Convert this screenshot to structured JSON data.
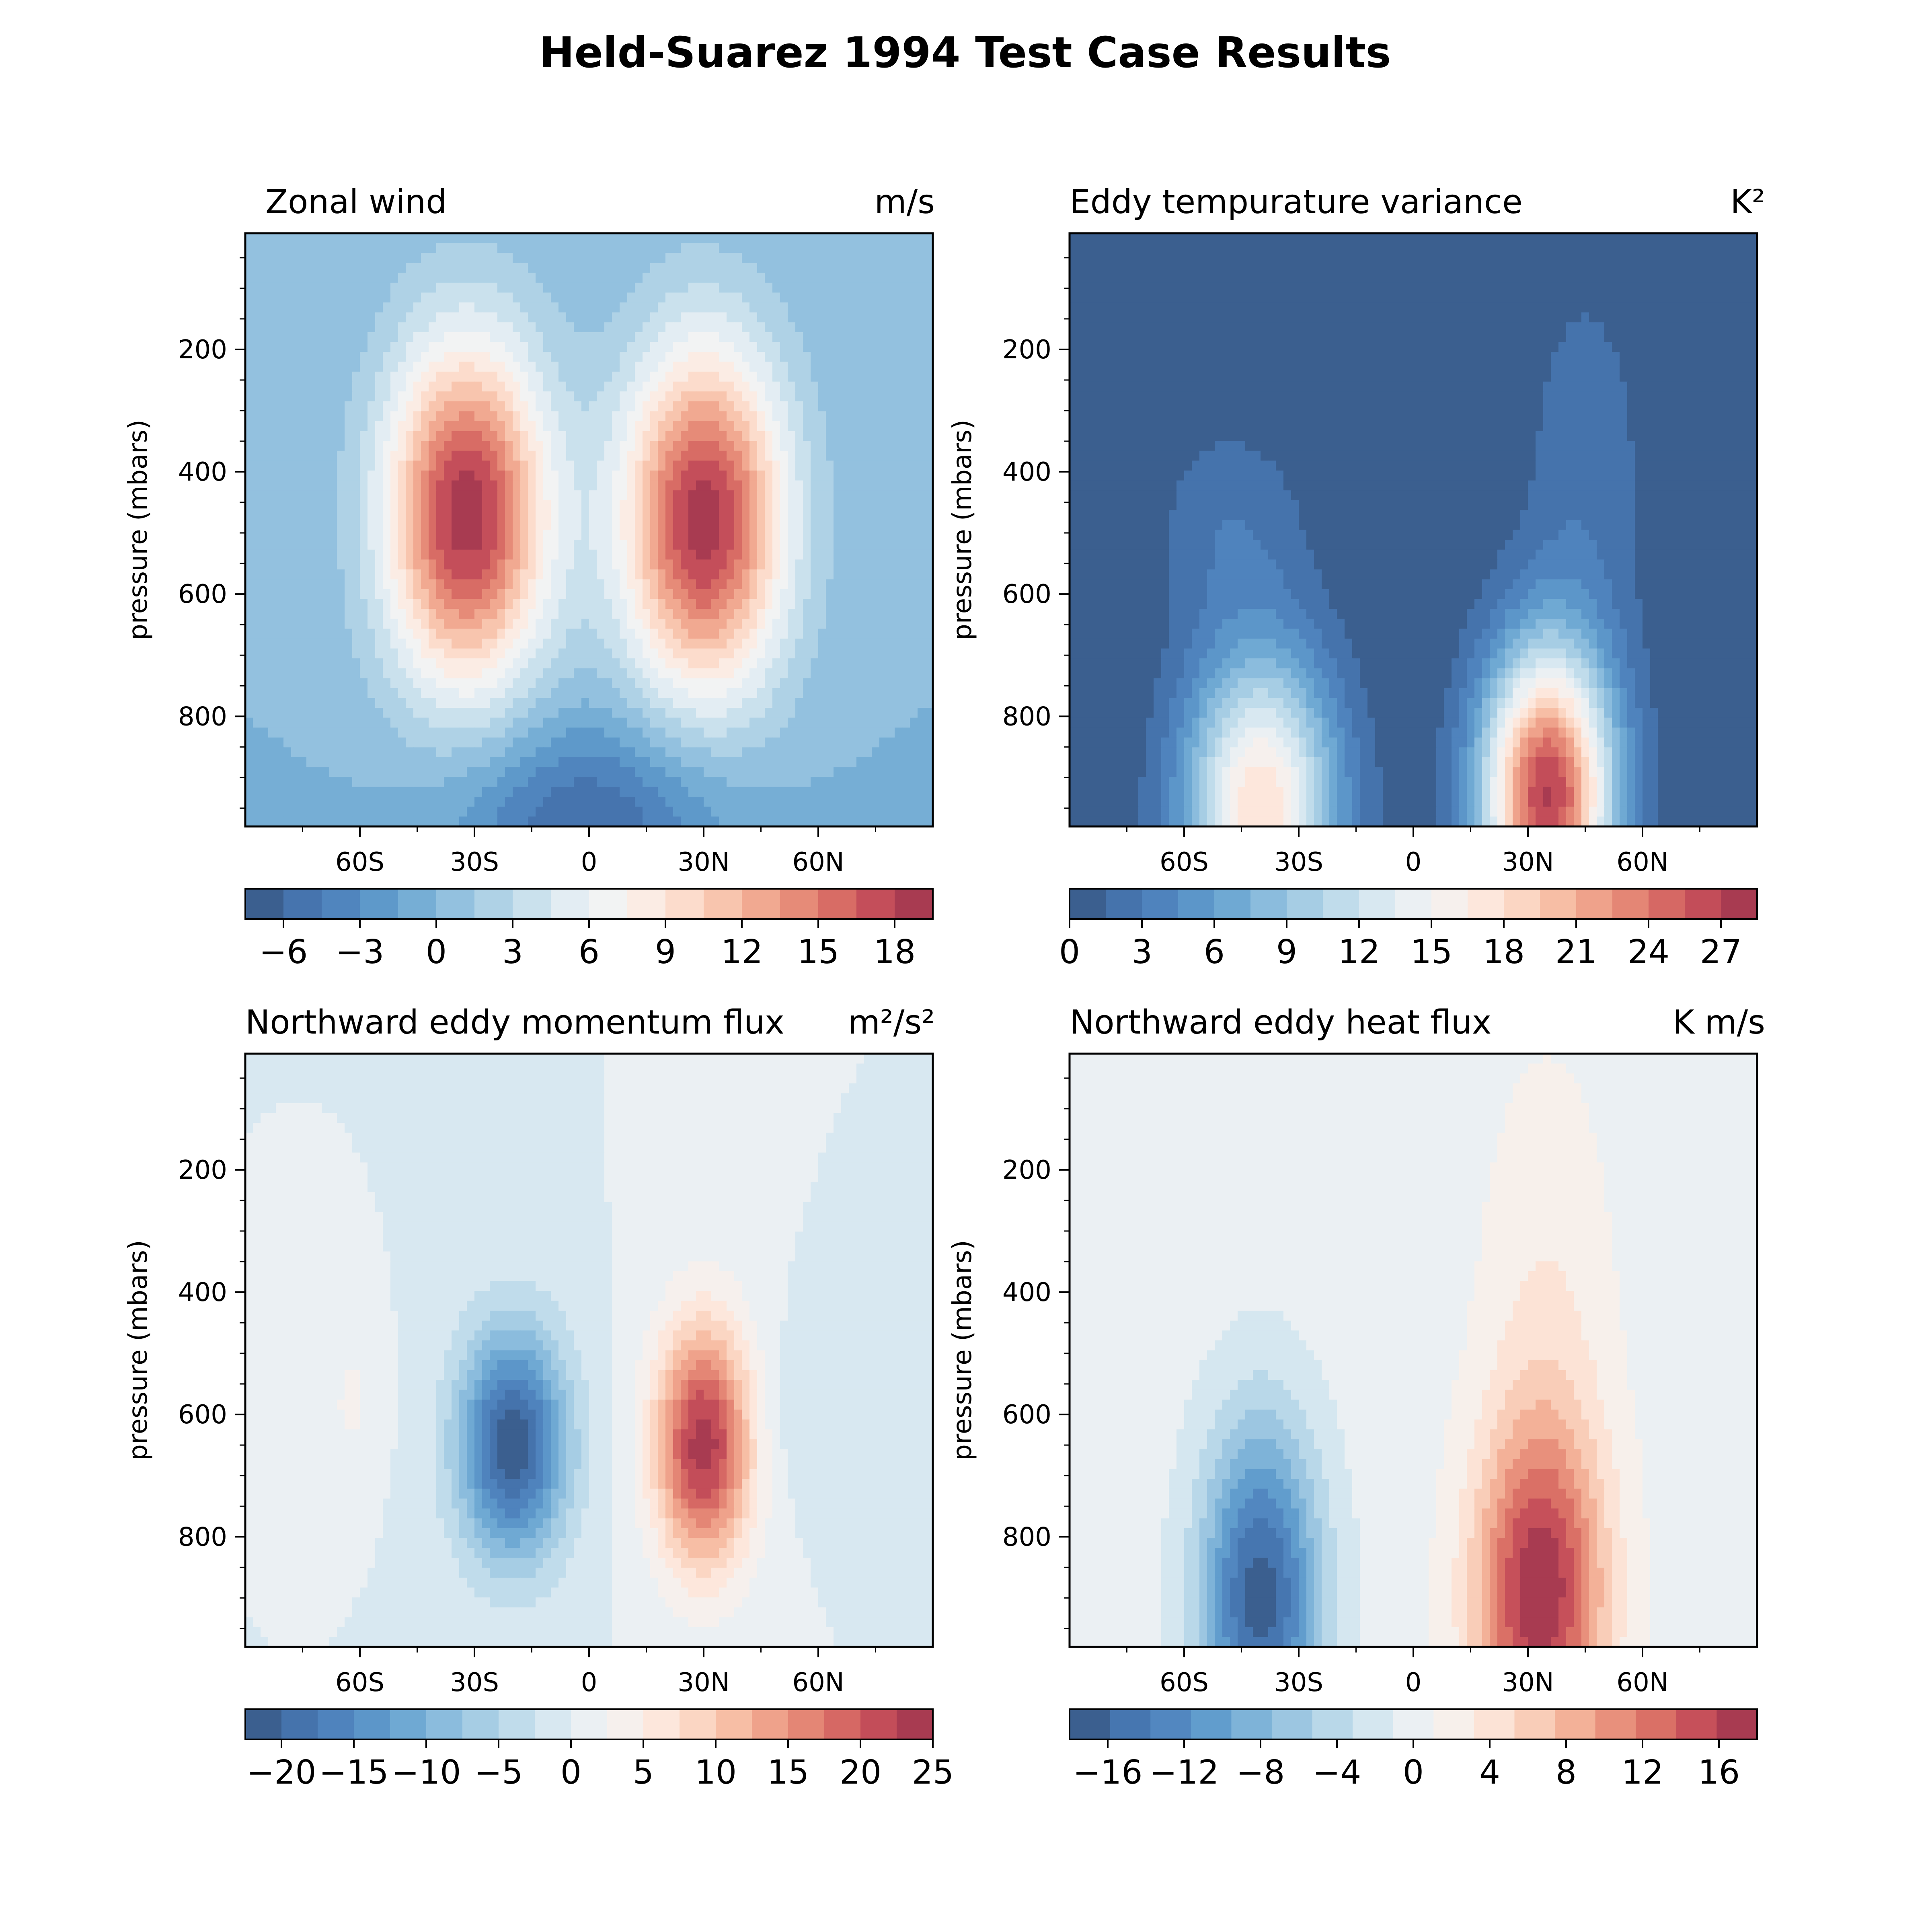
{
  "figure": {
    "title": "Held-Suarez 1994 Test Case Results"
  },
  "colors": {
    "RdBu_r_16": [
      "#3b5f8f",
      "#4777b2",
      "#5389c2",
      "#64a2cf",
      "#86b8db",
      "#a6cde4",
      "#c5dfec",
      "#e2edf3",
      "#f3f3f3",
      "#fdebe1",
      "#fbd6c3",
      "#f6b99f",
      "#eb9781",
      "#dd7468",
      "#c8515b",
      "#a83b51"
    ]
  },
  "chart_data": [
    {
      "type": "contourf",
      "title": "Zonal wind",
      "units": "m/s",
      "xlabel": "",
      "ylabel": "pressure (mbars)",
      "x_tick_labels": [
        "60S",
        "30S",
        "0",
        "30N",
        "60N"
      ],
      "x_tick_values": [
        -60,
        -30,
        0,
        30,
        60
      ],
      "xlim": [
        -90,
        90
      ],
      "y_tick_labels": [
        "200",
        "400",
        "600",
        "800"
      ],
      "y_tick_values": [
        200,
        400,
        600,
        800
      ],
      "ylim": [
        980,
        10
      ],
      "y_inverted": true,
      "colorbar": {
        "tick_labels": [
          "−6",
          "−3",
          "0",
          "3",
          "6",
          "9",
          "12",
          "15",
          "18"
        ],
        "tick_values": [
          -6,
          -3,
          0,
          3,
          6,
          9,
          12,
          15,
          18
        ],
        "range": [
          -7.5,
          19.5
        ],
        "levels": 18
      },
      "features": [
        {
          "kind": "max",
          "x": -32,
          "p": 470,
          "value": 19,
          "sx": 15,
          "sp": 200
        },
        {
          "kind": "max",
          "x": 30,
          "p": 480,
          "value": 19,
          "sx": 15,
          "sp": 200
        },
        {
          "kind": "min",
          "x": 0,
          "p": 980,
          "value": -6,
          "sx": 25,
          "sp": 120
        }
      ]
    },
    {
      "type": "contourf",
      "title": "Eddy tempurature variance",
      "units": "K²",
      "xlabel": "",
      "ylabel": "pressure (mbars)",
      "x_tick_labels": [
        "60S",
        "30S",
        "0",
        "30N",
        "60N"
      ],
      "x_tick_values": [
        -60,
        -30,
        0,
        30,
        60
      ],
      "xlim": [
        -90,
        90
      ],
      "y_tick_labels": [
        "200",
        "400",
        "600",
        "800"
      ],
      "y_tick_values": [
        200,
        400,
        600,
        800
      ],
      "ylim": [
        980,
        10
      ],
      "y_inverted": true,
      "colorbar": {
        "tick_labels": [
          "0",
          "3",
          "6",
          "9",
          "12",
          "15",
          "18",
          "21",
          "24",
          "27"
        ],
        "tick_values": [
          0,
          3,
          6,
          9,
          12,
          15,
          18,
          21,
          24,
          27
        ],
        "range": [
          0,
          28.5
        ],
        "levels": 19
      },
      "features": [
        {
          "kind": "max",
          "x": -40,
          "p": 950,
          "value": 18,
          "sx": 14,
          "sp": 180
        },
        {
          "kind": "max",
          "x": 35,
          "p": 930,
          "value": 27,
          "sx": 12,
          "sp": 170
        },
        {
          "kind": "upper",
          "x": 45,
          "p": 400,
          "value": 2.5,
          "sx": 12,
          "sp": 250
        },
        {
          "kind": "upper",
          "x": -48,
          "p": 480,
          "value": 2.5,
          "sx": 14,
          "sp": 120
        }
      ]
    },
    {
      "type": "contourf",
      "title": "Northward eddy momentum flux",
      "units": "m²/s²",
      "xlabel": "",
      "ylabel": "pressure (mbars)",
      "x_tick_labels": [
        "60S",
        "30S",
        "0",
        "30N",
        "60N"
      ],
      "x_tick_values": [
        -60,
        -30,
        0,
        30,
        60
      ],
      "xlim": [
        -90,
        90
      ],
      "y_tick_labels": [
        "200",
        "400",
        "600",
        "800"
      ],
      "y_tick_values": [
        200,
        400,
        600,
        800
      ],
      "ylim": [
        980,
        10
      ],
      "y_inverted": true,
      "colorbar": {
        "tick_labels": [
          "−20",
          "−15",
          "−10",
          "−5",
          "0",
          "5",
          "10",
          "15",
          "20",
          "25"
        ],
        "tick_values": [
          -20,
          -15,
          -10,
          -5,
          0,
          5,
          10,
          15,
          20,
          25
        ],
        "range": [
          -22.5,
          25
        ],
        "levels": 19
      },
      "features": [
        {
          "kind": "min",
          "x": -20,
          "p": 650,
          "value": -22,
          "sx": 10,
          "sp": 130
        },
        {
          "kind": "max",
          "x": 30,
          "p": 650,
          "value": 24,
          "sx": 9,
          "sp": 140
        },
        {
          "kind": "max",
          "x": -62,
          "p": 580,
          "value": 3,
          "sx": 5,
          "sp": 80
        },
        {
          "kind": "min",
          "x": 55,
          "p": 600,
          "value": -2,
          "sx": 10,
          "sp": 100
        }
      ]
    },
    {
      "type": "contourf",
      "title": "Northward eddy heat flux",
      "units": "K m/s",
      "xlabel": "",
      "ylabel": "pressure (mbars)",
      "x_tick_labels": [
        "60S",
        "30S",
        "0",
        "30N",
        "60N"
      ],
      "x_tick_values": [
        -60,
        -30,
        0,
        30,
        60
      ],
      "xlim": [
        -90,
        90
      ],
      "y_tick_labels": [
        "200",
        "400",
        "600",
        "800"
      ],
      "y_tick_values": [
        200,
        400,
        600,
        800
      ],
      "ylim": [
        980,
        10
      ],
      "y_inverted": true,
      "colorbar": {
        "tick_labels": [
          "−16",
          "−12",
          "−8",
          "−4",
          "0",
          "4",
          "8",
          "12",
          "16"
        ],
        "tick_values": [
          -16,
          -12,
          -8,
          -4,
          0,
          4,
          8,
          12,
          16
        ],
        "range": [
          -18,
          18
        ],
        "levels": 17
      },
      "features": [
        {
          "kind": "min",
          "x": -40,
          "p": 900,
          "value": -17,
          "sx": 11,
          "sp": 200
        },
        {
          "kind": "max",
          "x": 33,
          "p": 900,
          "value": 17,
          "sx": 12,
          "sp": 200
        },
        {
          "kind": "max",
          "x": 35,
          "p": 450,
          "value": 3,
          "sx": 12,
          "sp": 300
        }
      ]
    }
  ]
}
